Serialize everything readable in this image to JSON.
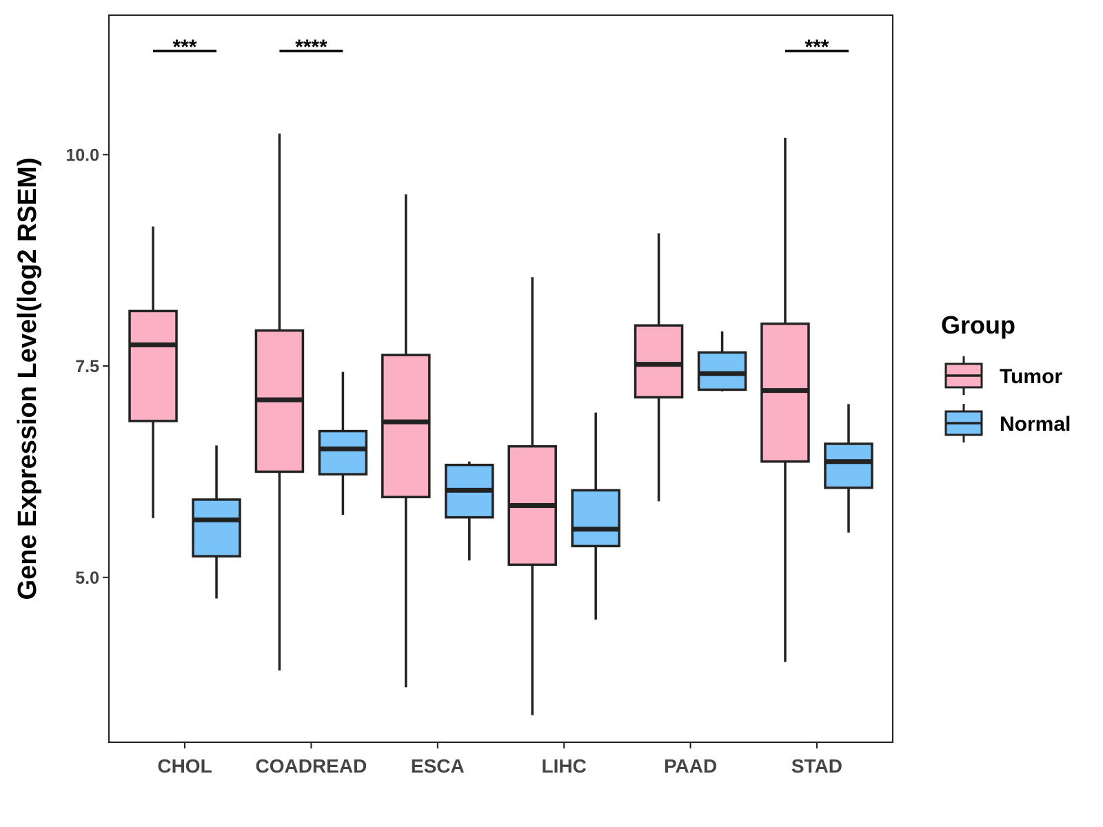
{
  "chart_data": {
    "type": "boxplot",
    "ylabel": "Gene Expression Level(log2 RSEM)",
    "xlabel": "",
    "ylim": [
      3.05,
      11.65
    ],
    "yticks": [
      "5.0",
      "7.5",
      "10.0"
    ],
    "categories": [
      "CHOL",
      "COADREAD",
      "ESCA",
      "LIHC",
      "PAAD",
      "STAD"
    ],
    "series": [
      {
        "name": "Tumor",
        "color": "#FBB1C3",
        "boxes": [
          {
            "whisker_low": 5.7,
            "q1": 6.85,
            "median": 7.75,
            "q3": 8.15,
            "whisker_high": 9.15
          },
          {
            "whisker_low": 3.9,
            "q1": 6.25,
            "median": 7.1,
            "q3": 7.92,
            "whisker_high": 10.25
          },
          {
            "whisker_low": 3.7,
            "q1": 5.95,
            "median": 6.84,
            "q3": 7.63,
            "whisker_high": 9.53
          },
          {
            "whisker_low": 3.37,
            "q1": 5.15,
            "median": 5.85,
            "q3": 6.55,
            "whisker_high": 8.55
          },
          {
            "whisker_low": 5.9,
            "q1": 7.13,
            "median": 7.52,
            "q3": 7.98,
            "whisker_high": 9.07
          },
          {
            "whisker_low": 4.0,
            "q1": 6.37,
            "median": 7.21,
            "q3": 8.0,
            "whisker_high": 10.2
          }
        ]
      },
      {
        "name": "Normal",
        "color": "#7AC3F8",
        "boxes": [
          {
            "whisker_low": 4.75,
            "q1": 5.25,
            "median": 5.68,
            "q3": 5.92,
            "whisker_high": 6.56
          },
          {
            "whisker_low": 5.74,
            "q1": 6.22,
            "median": 6.52,
            "q3": 6.73,
            "whisker_high": 7.43
          },
          {
            "whisker_low": 5.2,
            "q1": 5.71,
            "median": 6.03,
            "q3": 6.33,
            "whisker_high": 6.37
          },
          {
            "whisker_low": 4.5,
            "q1": 5.37,
            "median": 5.57,
            "q3": 6.03,
            "whisker_high": 6.95
          },
          {
            "whisker_low": 7.2,
            "q1": 7.22,
            "median": 7.41,
            "q3": 7.66,
            "whisker_high": 7.91
          },
          {
            "whisker_low": 5.53,
            "q1": 6.06,
            "median": 6.37,
            "q3": 6.58,
            "whisker_high": 7.05
          }
        ]
      }
    ],
    "significance": [
      {
        "category": "CHOL",
        "label": "***"
      },
      {
        "category": "COADREAD",
        "label": "****"
      },
      {
        "category": "STAD",
        "label": "***"
      }
    ],
    "legend": {
      "title": "Group",
      "position": "right",
      "items": [
        "Tumor",
        "Normal"
      ]
    },
    "grid": false
  }
}
